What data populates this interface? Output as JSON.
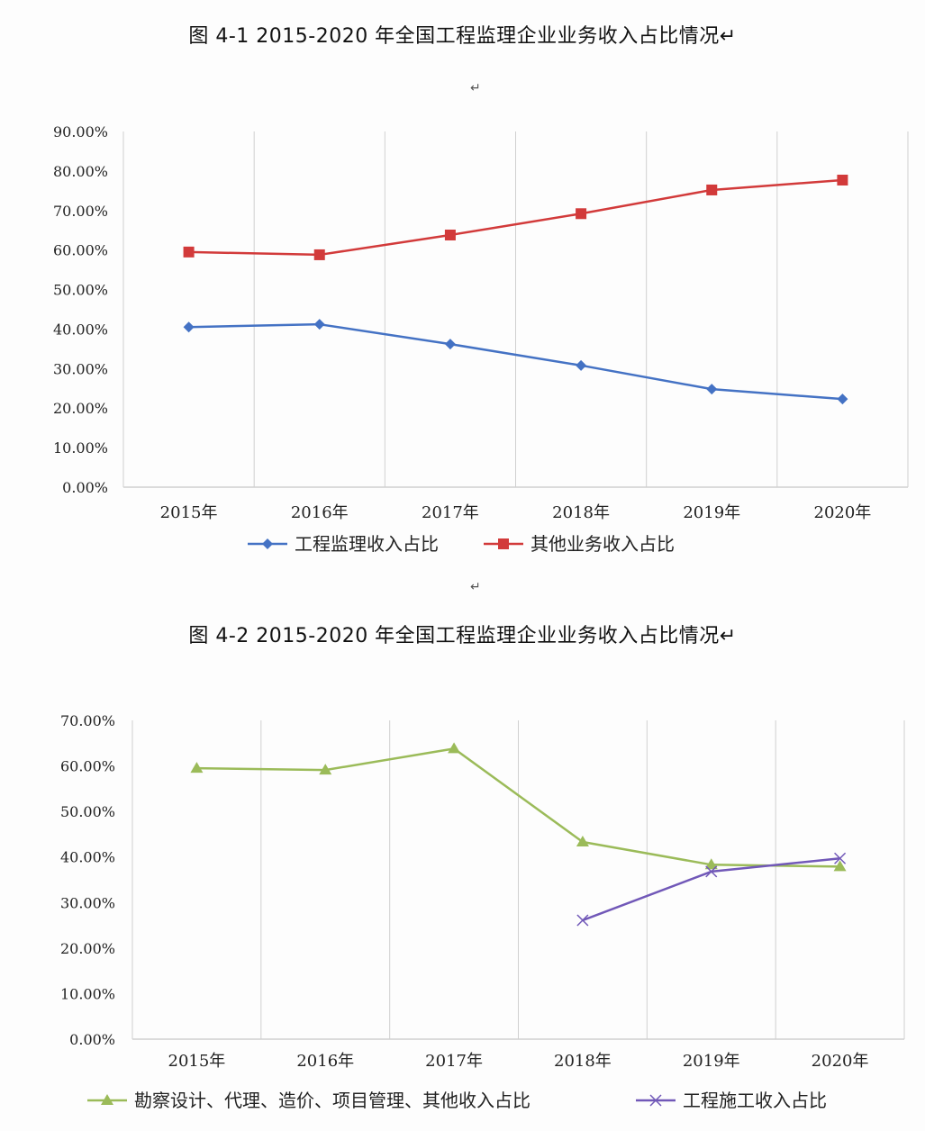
{
  "figure1": {
    "caption": "图 4-1   2015-2020 年全国工程监理企业业务收入占比情况↵",
    "after_mark": "↵",
    "legend": [
      {
        "label": "工程监理收入占比",
        "color": "#4472c4",
        "marker": "diamond"
      },
      {
        "label": "其他业务收入占比",
        "color": "#d23a3a",
        "marker": "square"
      }
    ],
    "y_ticks": [
      "90.00%",
      "80.00%",
      "70.00%",
      "60.00%",
      "50.00%",
      "40.00%",
      "30.00%",
      "20.00%",
      "10.00%",
      "0.00%"
    ],
    "x_ticks": [
      "2015年",
      "2016年",
      "2017年",
      "2018年",
      "2019年",
      "2020年"
    ]
  },
  "between_mark": "↵",
  "figure2": {
    "caption": "图 4-2   2015-2020 年全国工程监理企业业务收入占比情况↵",
    "legend": [
      {
        "label": "勘察设计、代理、造价、项目管理、其他收入占比",
        "color": "#9bbb59",
        "marker": "triangle"
      },
      {
        "label": "工程施工收入占比",
        "color": "#7158b8",
        "marker": "x"
      }
    ],
    "y_ticks": [
      "70.00%",
      "60.00%",
      "50.00%",
      "40.00%",
      "30.00%",
      "20.00%",
      "10.00%",
      "0.00%"
    ],
    "x_ticks": [
      "2015年",
      "2016年",
      "2017年",
      "2018年",
      "2019年",
      "2020年"
    ]
  },
  "chart_data": [
    {
      "type": "line",
      "title": "图 4-1 2015-2020 年全国工程监理企业业务收入占比情况",
      "categories": [
        "2015年",
        "2016年",
        "2017年",
        "2018年",
        "2019年",
        "2020年"
      ],
      "series": [
        {
          "name": "工程监理收入占比",
          "values": [
            40.5,
            41.2,
            36.2,
            30.8,
            24.8,
            22.3
          ],
          "color": "#4472c4"
        },
        {
          "name": "其他业务收入占比",
          "values": [
            59.5,
            58.8,
            63.8,
            69.2,
            75.2,
            77.7
          ],
          "color": "#d23a3a"
        }
      ],
      "xlabel": "",
      "ylabel": "",
      "ylim": [
        0,
        90
      ],
      "y_unit": "%",
      "grid": "vertical",
      "legend_position": "bottom"
    },
    {
      "type": "line",
      "title": "图 4-2 2015-2020 年全国工程监理企业业务收入占比情况",
      "categories": [
        "2015年",
        "2016年",
        "2017年",
        "2018年",
        "2019年",
        "2020年"
      ],
      "series": [
        {
          "name": "勘察设计、代理、造价、项目管理、其他收入占比",
          "values": [
            59.5,
            59.1,
            63.8,
            43.3,
            38.3,
            37.9
          ],
          "color": "#9bbb59"
        },
        {
          "name": "工程施工收入占比",
          "values": [
            null,
            null,
            null,
            26.1,
            36.8,
            39.7
          ],
          "color": "#7158b8"
        }
      ],
      "xlabel": "",
      "ylabel": "",
      "ylim": [
        0,
        70
      ],
      "y_unit": "%",
      "grid": "vertical",
      "legend_position": "bottom"
    }
  ]
}
